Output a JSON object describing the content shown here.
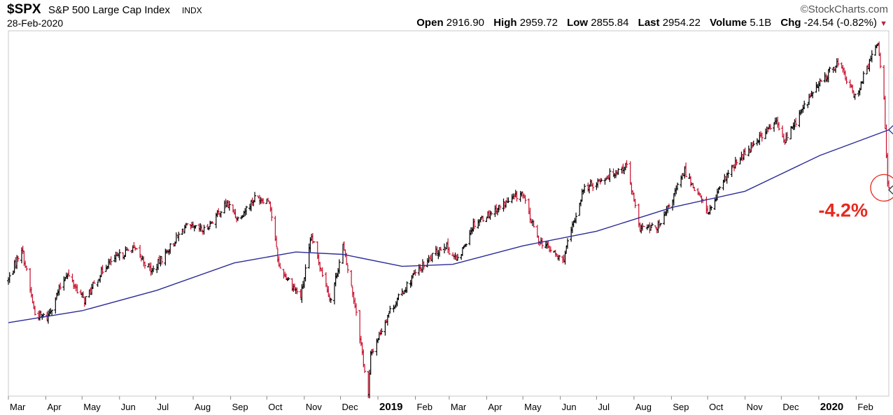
{
  "header": {
    "symbol": "$SPX",
    "name": "S&P 500 Large Cap Index",
    "exchange": "INDX",
    "date": "28-Feb-2020",
    "brand": "©StockCharts.com",
    "quote": [
      {
        "label": "Open",
        "value": "2916.90"
      },
      {
        "label": "High",
        "value": "2959.72"
      },
      {
        "label": "Low",
        "value": "2855.84"
      },
      {
        "label": "Last",
        "value": "2954.22"
      },
      {
        "label": "Volume",
        "value": "5.1B"
      },
      {
        "label": "Chg",
        "value": "-24.54 (-0.82%)"
      }
    ]
  },
  "colors": {
    "up": "#000000",
    "down": "#c8102e",
    "ma": "#2b2b9a",
    "annotation": "#e8281e",
    "frame": "#c8c8c8"
  },
  "chart_data": {
    "type": "ohlc",
    "x_tick_labels": [
      "Mar",
      "Apr",
      "May",
      "Jun",
      "Jul",
      "Aug",
      "Sep",
      "Oct",
      "Nov",
      "Dec",
      "2019",
      "Feb",
      "Mar",
      "Apr",
      "May",
      "Jun",
      "Jul",
      "Aug",
      "Sep",
      "Oct",
      "Nov",
      "Dec",
      "2020",
      "Feb"
    ],
    "x_range": [
      "2018-03-01",
      "2020-02-28"
    ],
    "y_range": [
      2350,
      3420
    ],
    "price_anchors": [
      {
        "date": "2018-03-01",
        "close": 2690
      },
      {
        "date": "2018-03-12",
        "close": 2785
      },
      {
        "date": "2018-03-23",
        "close": 2590
      },
      {
        "date": "2018-04-02",
        "close": 2580
      },
      {
        "date": "2018-04-18",
        "close": 2710
      },
      {
        "date": "2018-05-03",
        "close": 2630
      },
      {
        "date": "2018-05-21",
        "close": 2735
      },
      {
        "date": "2018-06-12",
        "close": 2785
      },
      {
        "date": "2018-06-28",
        "close": 2715
      },
      {
        "date": "2018-07-25",
        "close": 2845
      },
      {
        "date": "2018-08-10",
        "close": 2835
      },
      {
        "date": "2018-08-29",
        "close": 2915
      },
      {
        "date": "2018-09-07",
        "close": 2870
      },
      {
        "date": "2018-09-21",
        "close": 2930
      },
      {
        "date": "2018-10-03",
        "close": 2925
      },
      {
        "date": "2018-10-11",
        "close": 2730
      },
      {
        "date": "2018-10-29",
        "close": 2640
      },
      {
        "date": "2018-11-07",
        "close": 2815
      },
      {
        "date": "2018-11-23",
        "close": 2630
      },
      {
        "date": "2018-12-03",
        "close": 2790
      },
      {
        "date": "2018-12-14",
        "close": 2600
      },
      {
        "date": "2018-12-24",
        "close": 2350
      },
      {
        "date": "2018-12-26",
        "close": 2470
      },
      {
        "date": "2019-01-10",
        "close": 2595
      },
      {
        "date": "2019-01-31",
        "close": 2705
      },
      {
        "date": "2019-02-25",
        "close": 2795
      },
      {
        "date": "2019-03-08",
        "close": 2745
      },
      {
        "date": "2019-03-21",
        "close": 2855
      },
      {
        "date": "2019-04-30",
        "close": 2945
      },
      {
        "date": "2019-05-13",
        "close": 2812
      },
      {
        "date": "2019-06-03",
        "close": 2745
      },
      {
        "date": "2019-06-20",
        "close": 2955
      },
      {
        "date": "2019-07-26",
        "close": 3026
      },
      {
        "date": "2019-08-05",
        "close": 2845
      },
      {
        "date": "2019-08-14",
        "close": 2840
      },
      {
        "date": "2019-08-23",
        "close": 2850
      },
      {
        "date": "2019-09-12",
        "close": 3010
      },
      {
        "date": "2019-10-02",
        "close": 2887
      },
      {
        "date": "2019-10-17",
        "close": 2998
      },
      {
        "date": "2019-11-08",
        "close": 3093
      },
      {
        "date": "2019-11-27",
        "close": 3153
      },
      {
        "date": "2019-12-03",
        "close": 3095
      },
      {
        "date": "2019-12-27",
        "close": 3240
      },
      {
        "date": "2020-01-17",
        "close": 3330
      },
      {
        "date": "2020-01-31",
        "close": 3225
      },
      {
        "date": "2020-02-19",
        "close": 3386
      },
      {
        "date": "2020-02-24",
        "close": 3225
      },
      {
        "date": "2020-02-27",
        "close": 2979
      },
      {
        "date": "2020-02-28",
        "close": 2954
      }
    ],
    "ma_200": [
      {
        "date": "2018-03-01",
        "value": 2565
      },
      {
        "date": "2018-05-01",
        "value": 2600
      },
      {
        "date": "2018-07-02",
        "value": 2660
      },
      {
        "date": "2018-09-04",
        "value": 2740
      },
      {
        "date": "2018-10-25",
        "value": 2772
      },
      {
        "date": "2018-12-03",
        "value": 2765
      },
      {
        "date": "2019-01-21",
        "value": 2730
      },
      {
        "date": "2019-03-04",
        "value": 2736
      },
      {
        "date": "2019-05-01",
        "value": 2790
      },
      {
        "date": "2019-07-01",
        "value": 2833
      },
      {
        "date": "2019-09-02",
        "value": 2903
      },
      {
        "date": "2019-11-01",
        "value": 2950
      },
      {
        "date": "2020-01-02",
        "value": 3055
      },
      {
        "date": "2020-02-28",
        "value": 3130
      }
    ],
    "annotation": {
      "text": "-4.2%"
    }
  }
}
